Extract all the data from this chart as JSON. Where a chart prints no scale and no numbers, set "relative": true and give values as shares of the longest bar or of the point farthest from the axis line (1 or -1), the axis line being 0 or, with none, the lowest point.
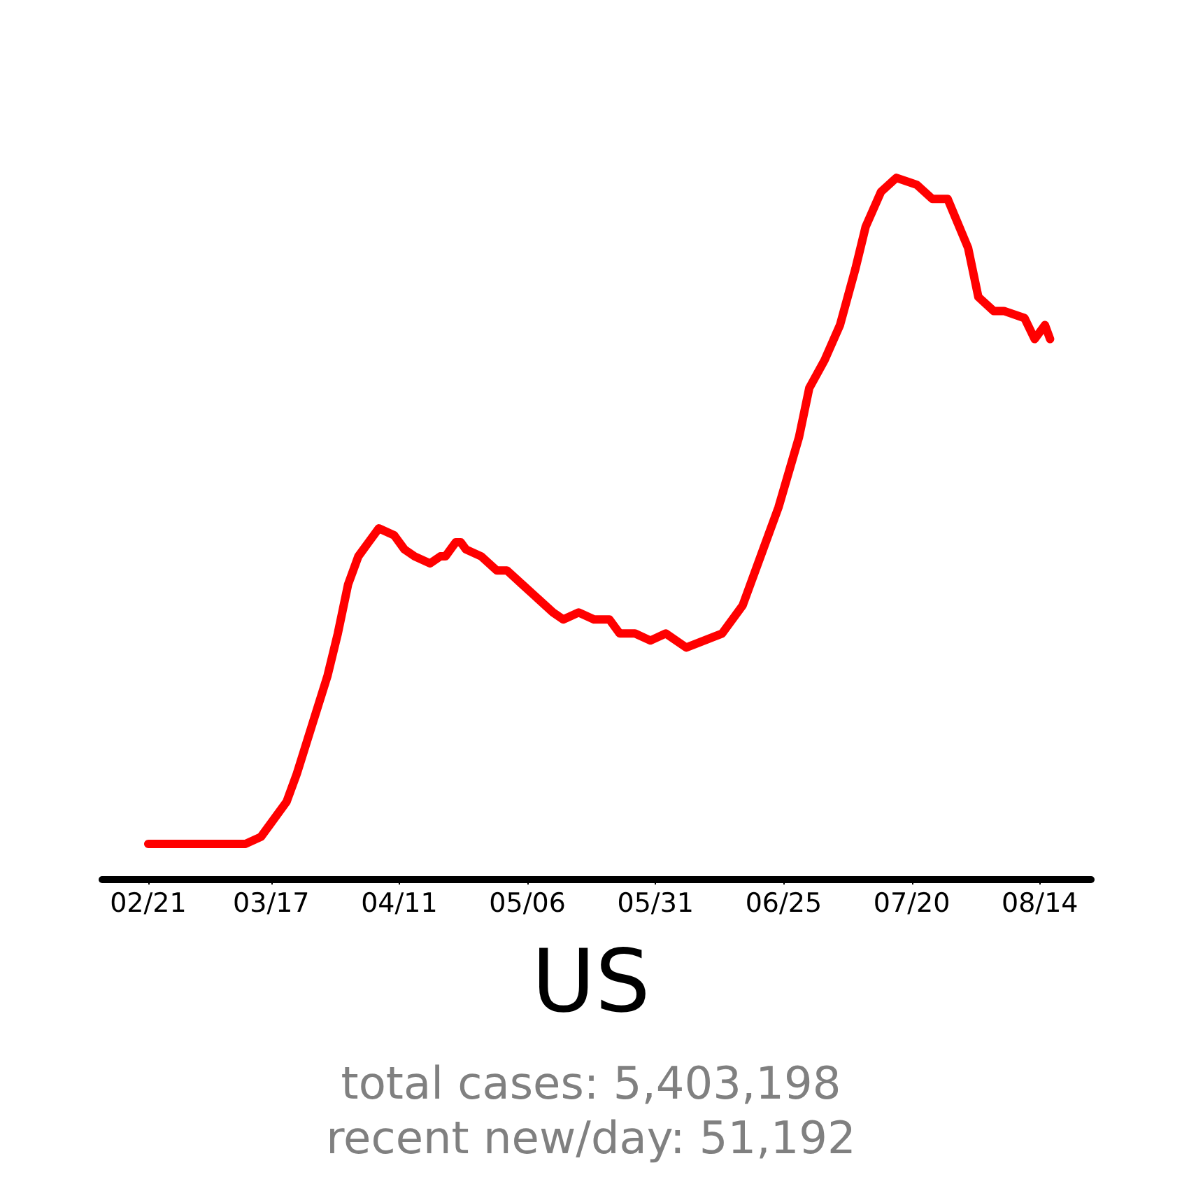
{
  "chart_data": {
    "type": "line",
    "title": "US",
    "relative": true,
    "annotations": [
      "total cases: 5,403,198",
      "recent new/day: 51,192"
    ],
    "xlim": [
      "--02-12",
      "--08-24"
    ],
    "xticks": [
      {
        "value": "--02-21",
        "label": "02/21"
      },
      {
        "value": "--03-17",
        "label": "03/17"
      },
      {
        "value": "--04-11",
        "label": "04/11"
      },
      {
        "value": "--05-06",
        "label": "05/06"
      },
      {
        "value": "--05-31",
        "label": "05/31"
      },
      {
        "value": "--06-25",
        "label": "06/25"
      },
      {
        "value": "--07-20",
        "label": "07/20"
      },
      {
        "value": "--08-14",
        "label": "08/14"
      }
    ],
    "x": [
      "--02-21",
      "--03-12",
      "--03-15",
      "--03-17",
      "--03-20",
      "--03-22",
      "--03-25",
      "--03-28",
      "--03-30",
      "--04-01",
      "--04-03",
      "--04-05",
      "--04-07",
      "--04-10",
      "--04-12",
      "--04-14",
      "--04-17",
      "--04-19",
      "--04-20",
      "--04-22",
      "--04-23",
      "--04-24",
      "--04-27",
      "--04-30",
      "--05-02",
      "--05-05",
      "--05-08",
      "--05-11",
      "--05-13",
      "--05-16",
      "--05-19",
      "--05-22",
      "--05-24",
      "--05-27",
      "--05-30",
      "--06-02",
      "--06-06",
      "--06-13",
      "--06-17",
      "--06-21",
      "--06-24",
      "--06-28",
      "--06-30",
      "--07-03",
      "--07-06",
      "--07-09",
      "--07-11",
      "--07-14",
      "--07-17",
      "--07-21",
      "--07-24",
      "--07-27",
      "--07-31",
      "--08-02",
      "--08-05",
      "--08-07",
      "--08-11",
      "--08-13",
      "--08-15",
      "--08-16"
    ],
    "series": [
      {
        "color": "#ff0000",
        "values": [
          0.05,
          0.05,
          0.06,
          0.08,
          0.11,
          0.15,
          0.22,
          0.29,
          0.35,
          0.42,
          0.46,
          0.48,
          0.5,
          0.49,
          0.47,
          0.46,
          0.45,
          0.46,
          0.46,
          0.48,
          0.48,
          0.47,
          0.46,
          0.44,
          0.44,
          0.42,
          0.4,
          0.38,
          0.37,
          0.38,
          0.37,
          0.37,
          0.35,
          0.35,
          0.34,
          0.35,
          0.33,
          0.35,
          0.39,
          0.47,
          0.53,
          0.63,
          0.7,
          0.74,
          0.79,
          0.87,
          0.93,
          0.98,
          1.0,
          0.99,
          0.97,
          0.97,
          0.9,
          0.83,
          0.81,
          0.81,
          0.8,
          0.77,
          0.79,
          0.77
        ]
      }
    ],
    "grid": false,
    "marker": "none",
    "line_style": "solid"
  }
}
